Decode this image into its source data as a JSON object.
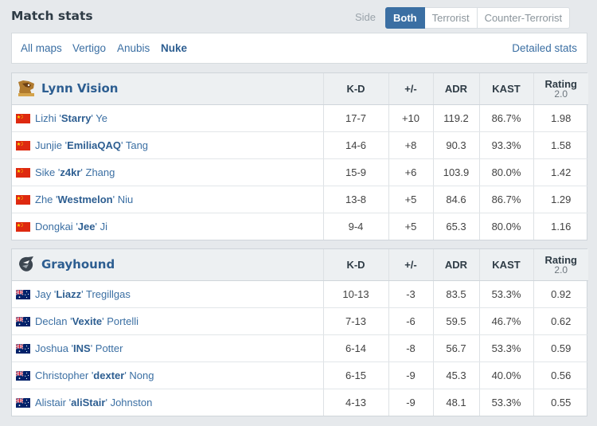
{
  "header": {
    "title": "Match stats",
    "side_label": "Side",
    "side_options": [
      "Both",
      "Terrorist",
      "Counter-Terrorist"
    ],
    "side_selected": "Both"
  },
  "maps": {
    "items": [
      "All maps",
      "Vertigo",
      "Anubis",
      "Nuke"
    ],
    "selected": "Nuke",
    "detailed_link": "Detailed stats"
  },
  "columns": {
    "kd": "K-D",
    "pm": "+/-",
    "adr": "ADR",
    "kast": "KAST",
    "rating": "Rating",
    "rating_ver": "2.0"
  },
  "teams": [
    {
      "name": "Lynn Vision",
      "logo": "lynn-vision-logo",
      "players": [
        {
          "first": "Lizhi",
          "nick": "Starry",
          "last": "Ye",
          "flag": "cn-flag",
          "kd": "17-7",
          "pm": "+10",
          "adr": "119.2",
          "kast": "86.7%",
          "rating": "1.98"
        },
        {
          "first": "Junjie",
          "nick": "EmiliaQAQ",
          "last": "Tang",
          "flag": "cn-flag",
          "kd": "14-6",
          "pm": "+8",
          "adr": "90.3",
          "kast": "93.3%",
          "rating": "1.58"
        },
        {
          "first": "Sike",
          "nick": "z4kr",
          "last": "Zhang",
          "flag": "cn-flag",
          "kd": "15-9",
          "pm": "+6",
          "adr": "103.9",
          "kast": "80.0%",
          "rating": "1.42"
        },
        {
          "first": "Zhe",
          "nick": "Westmelon",
          "last": "Niu",
          "flag": "cn-flag",
          "kd": "13-8",
          "pm": "+5",
          "adr": "84.6",
          "kast": "86.7%",
          "rating": "1.29"
        },
        {
          "first": "Dongkai",
          "nick": "Jee",
          "last": "Ji",
          "flag": "cn-flag",
          "kd": "9-4",
          "pm": "+5",
          "adr": "65.3",
          "kast": "80.0%",
          "rating": "1.16"
        }
      ]
    },
    {
      "name": "Grayhound",
      "logo": "grayhound-logo",
      "players": [
        {
          "first": "Jay",
          "nick": "Liazz",
          "last": "Tregillgas",
          "flag": "au-flag",
          "kd": "10-13",
          "pm": "-3",
          "adr": "83.5",
          "kast": "53.3%",
          "rating": "0.92"
        },
        {
          "first": "Declan",
          "nick": "Vexite",
          "last": "Portelli",
          "flag": "au-flag",
          "kd": "7-13",
          "pm": "-6",
          "adr": "59.5",
          "kast": "46.7%",
          "rating": "0.62"
        },
        {
          "first": "Joshua",
          "nick": "INS",
          "last": "Potter",
          "flag": "au-flag",
          "kd": "6-14",
          "pm": "-8",
          "adr": "56.7",
          "kast": "53.3%",
          "rating": "0.59"
        },
        {
          "first": "Christopher",
          "nick": "dexter",
          "last": "Nong",
          "flag": "au-flag",
          "kd": "6-15",
          "pm": "-9",
          "adr": "45.3",
          "kast": "40.0%",
          "rating": "0.56"
        },
        {
          "first": "Alistair",
          "nick": "aliStair",
          "last": "Johnston",
          "flag": "au-flag",
          "kd": "4-13",
          "pm": "-9",
          "adr": "48.1",
          "kast": "53.3%",
          "rating": "0.55"
        }
      ]
    }
  ],
  "colors": {
    "accent": "#3b6fa3",
    "positive": "#2aa02a",
    "negative": "#d9363e"
  }
}
